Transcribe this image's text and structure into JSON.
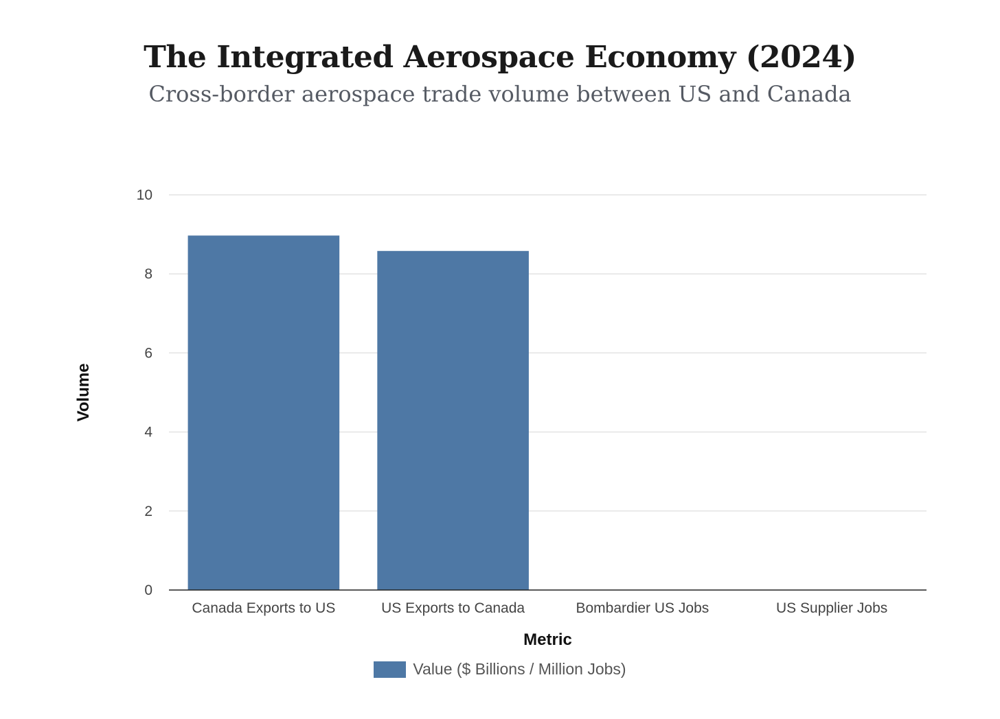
{
  "chart_data": {
    "type": "bar",
    "title": "The Integrated Aerospace Economy (2024)",
    "subtitle": "Cross-border aerospace trade volume between US and Canada",
    "categories": [
      "Canada Exports to US",
      "US Exports to Canada",
      "Bombardier US Jobs",
      "US Supplier Jobs"
    ],
    "series": [
      {
        "name": "Value ($ Billions / Million Jobs)",
        "values": [
          8.97,
          8.58,
          0.0,
          0.0
        ],
        "color": "#4e78a5"
      }
    ],
    "xlabel": "Metric",
    "ylabel": "Volume",
    "ylim": [
      0,
      10
    ],
    "yticks": [
      0,
      2,
      4,
      6,
      8,
      10
    ],
    "grid": true,
    "legend_position": "bottom-center"
  }
}
